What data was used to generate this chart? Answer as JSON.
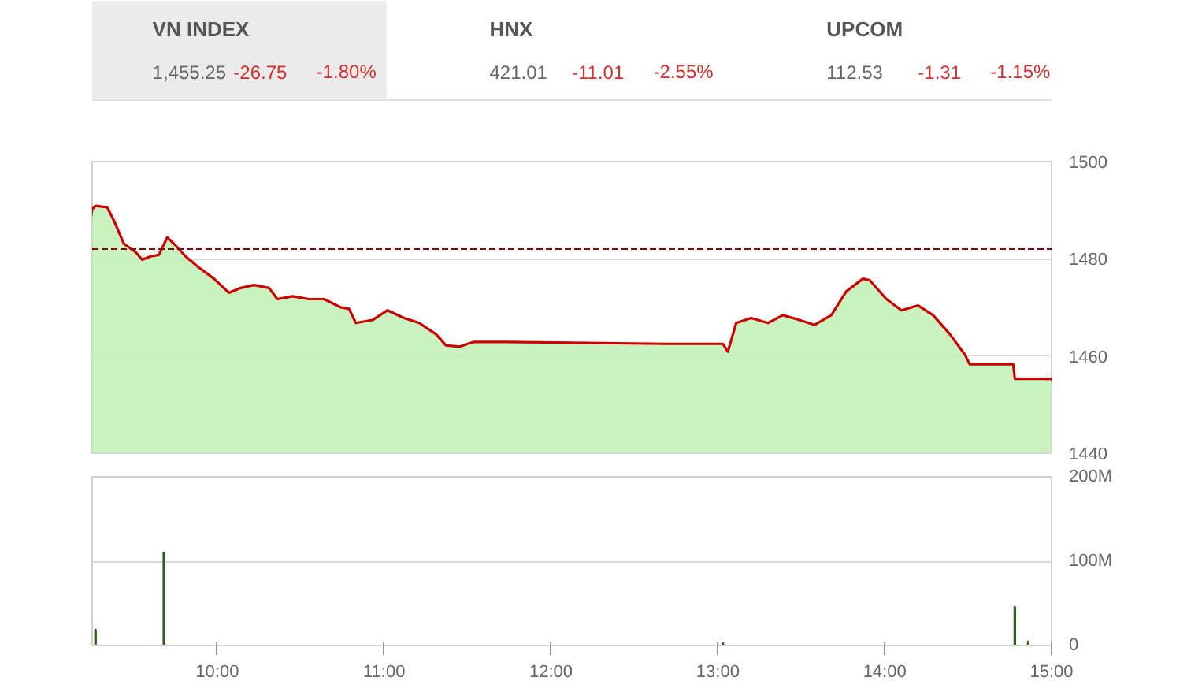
{
  "chart_data": [
    {
      "type": "other",
      "title": "VN INDEX",
      "annotations": [
        "1,455.25",
        "-26.75",
        "-1.80%"
      ]
    },
    {
      "type": "other",
      "title": "HNX",
      "annotations": [
        "421.01",
        "-11.01",
        "-2.55%"
      ]
    },
    {
      "type": "other",
      "title": "UPCOM",
      "annotations": [
        "112.53",
        "-1.31",
        "-1.15%"
      ]
    },
    {
      "type": "area",
      "xlim": [
        9.25,
        15
      ],
      "ylim": [
        1440,
        1500
      ],
      "yticks": [
        1440,
        1460,
        1480,
        1500
      ],
      "grid": "y",
      "tick_labels": "y",
      "ref_lines": [
        {
          "axis": "y",
          "value": 1482,
          "color": "#8b0000",
          "line_style": "dashed"
        }
      ],
      "series": [
        {
          "color": "#cc0000",
          "x": [
            9.25,
            9.27,
            9.34,
            9.38,
            9.44,
            9.51,
            9.55,
            9.6,
            9.65,
            9.7,
            9.74,
            9.81,
            9.89,
            9.98,
            10.07,
            10.14,
            10.22,
            10.31,
            10.36,
            10.45,
            10.55,
            10.64,
            10.74,
            10.79,
            10.83,
            10.93,
            11.02,
            11.12,
            11.21,
            11.31,
            11.37,
            11.45,
            11.5,
            11.54,
            11.73,
            12.68,
            13.03,
            13.06,
            13.11,
            13.2,
            13.3,
            13.39,
            13.49,
            13.58,
            13.68,
            13.77,
            13.87,
            13.91,
            14.01,
            14.1,
            14.2,
            14.29,
            14.39,
            14.48,
            14.51,
            14.77,
            14.78,
            15.0
          ],
          "values": [
            1490.2,
            1490.9,
            1490.6,
            1487.9,
            1483.1,
            1481.4,
            1479.8,
            1480.5,
            1480.8,
            1484.4,
            1483.1,
            1480.5,
            1478.2,
            1475.9,
            1473.0,
            1474.0,
            1474.6,
            1474.0,
            1471.7,
            1472.3,
            1471.7,
            1471.7,
            1470.0,
            1469.7,
            1466.8,
            1467.4,
            1469.4,
            1467.8,
            1466.8,
            1464.5,
            1462.2,
            1461.9,
            1462.5,
            1462.9,
            1462.9,
            1462.5,
            1462.5,
            1460.9,
            1466.8,
            1467.8,
            1466.8,
            1468.4,
            1467.4,
            1466.4,
            1468.4,
            1473.3,
            1475.9,
            1475.6,
            1471.7,
            1469.4,
            1470.4,
            1468.4,
            1464.5,
            1460.3,
            1458.3,
            1458.3,
            1455.3,
            1455.3
          ]
        }
      ]
    },
    {
      "type": "bar",
      "xlim": [
        9.25,
        15
      ],
      "ylim": [
        0,
        200
      ],
      "grid": "y",
      "xticks": [
        {
          "value": 10,
          "label": "10:00"
        },
        {
          "value": 11,
          "label": "11:00"
        },
        {
          "value": 12,
          "label": "12:00"
        },
        {
          "value": 13,
          "label": "13:00"
        },
        {
          "value": 14,
          "label": "14:00"
        },
        {
          "value": 15,
          "label": "15:00"
        }
      ],
      "yticks": [
        {
          "value": 0,
          "label": "0"
        },
        {
          "value": 100,
          "label": "100M"
        },
        {
          "value": 200,
          "label": "200M"
        }
      ],
      "series": [
        {
          "color": "#2e5e1e",
          "x": [
            9.27,
            9.68,
            13.03,
            14.78,
            14.86
          ],
          "values": [
            19,
            110,
            3,
            46,
            5
          ]
        }
      ]
    }
  ]
}
